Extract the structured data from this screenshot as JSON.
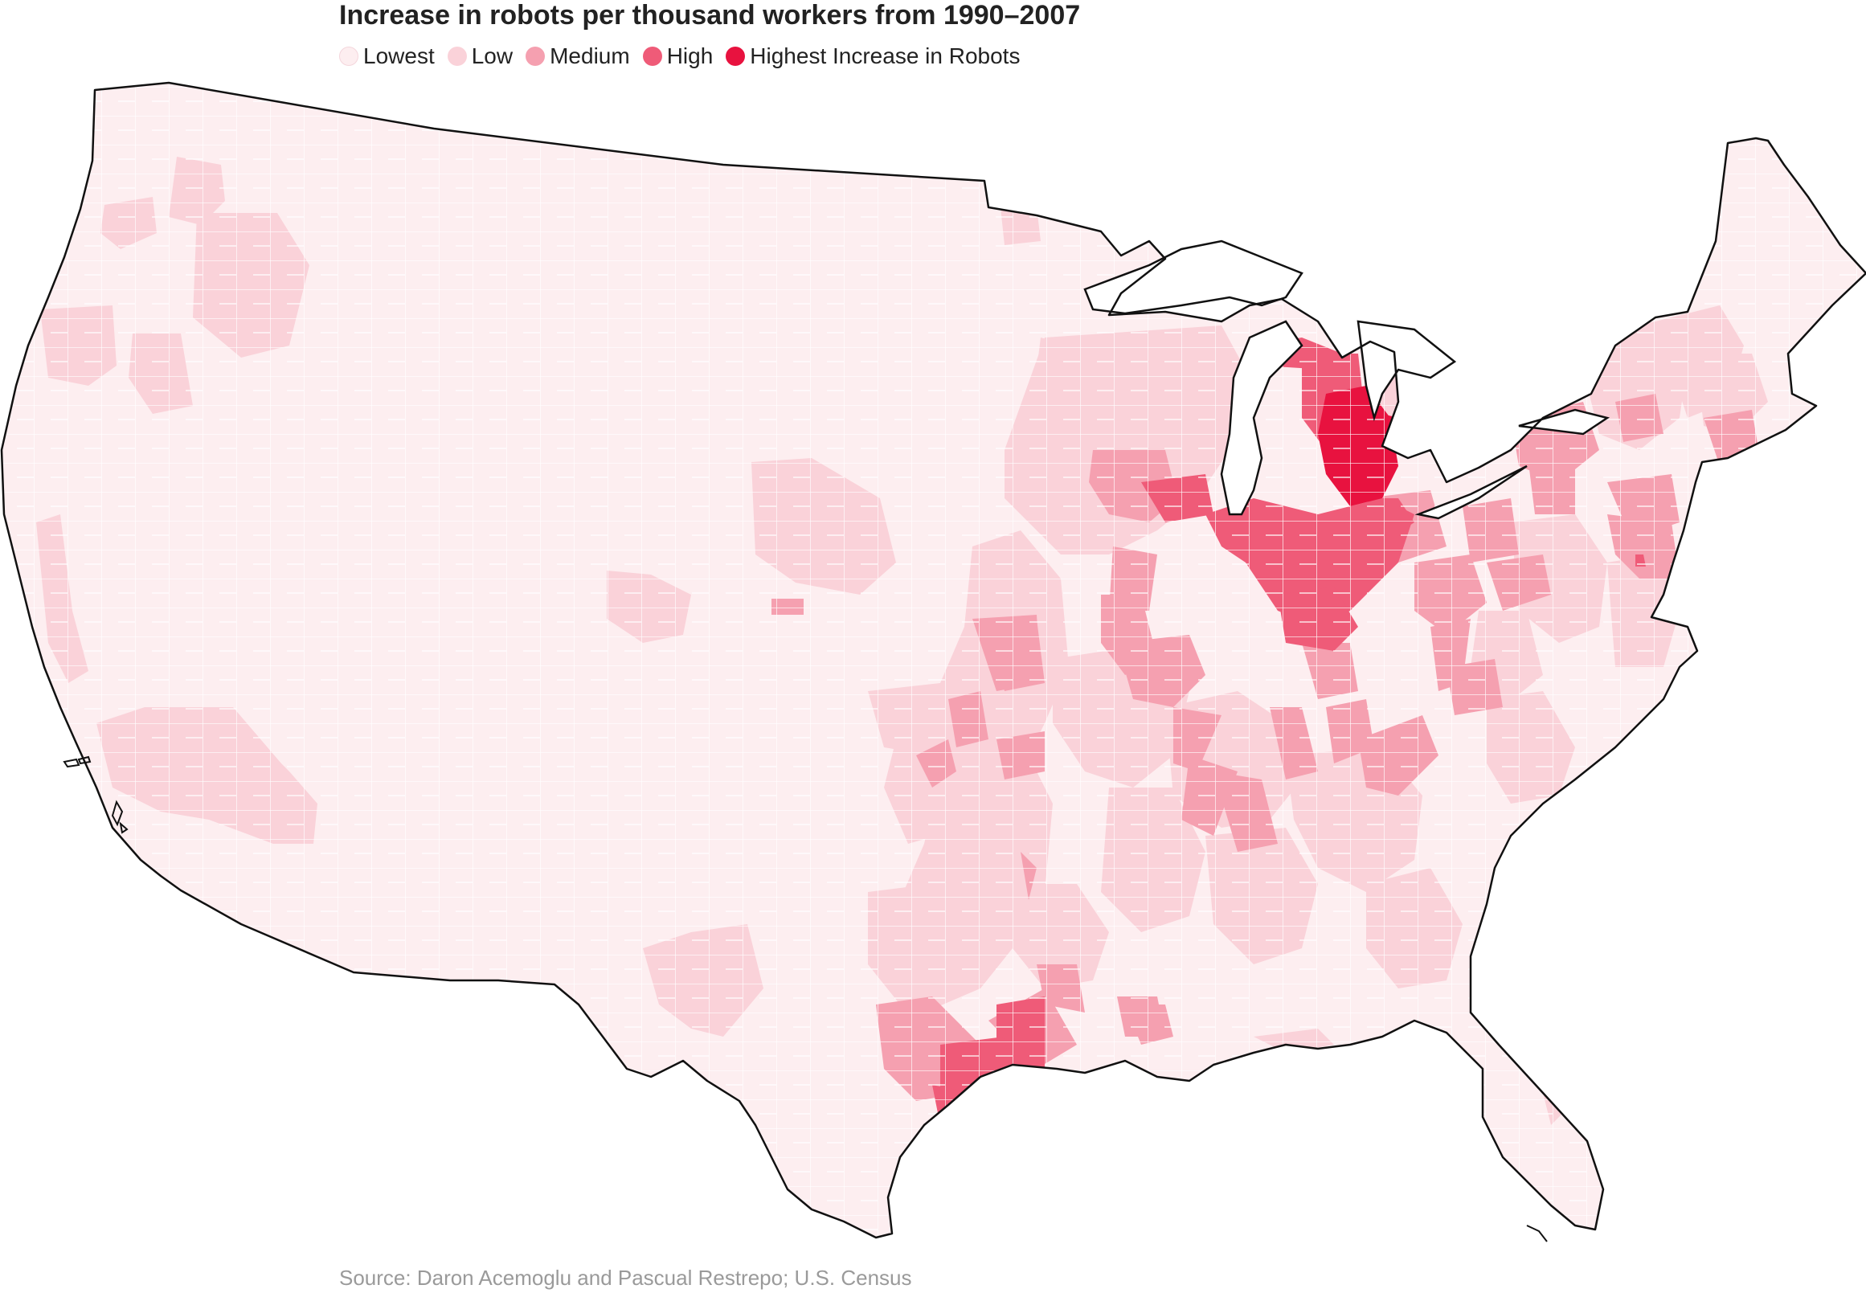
{
  "title": "Increase in robots per thousand workers from 1990–2007",
  "legend": [
    {
      "label": "Lowest",
      "color": "#fdeef0"
    },
    {
      "label": "Low",
      "color": "#fad2d9"
    },
    {
      "label": "Medium",
      "color": "#f5a0b0"
    },
    {
      "label": "High",
      "color": "#ef5b78"
    },
    {
      "label": "Highest Increase in Robots",
      "color": "#e8123f"
    }
  ],
  "source": "Source: Daron Acemoglu and Pascual Restrepo; U.S. Census",
  "map": {
    "region": "Contiguous United States (commuting zones)",
    "base_color": "#fdeef0",
    "border_color": "#ffffff",
    "outline_color": "#111111"
  }
}
